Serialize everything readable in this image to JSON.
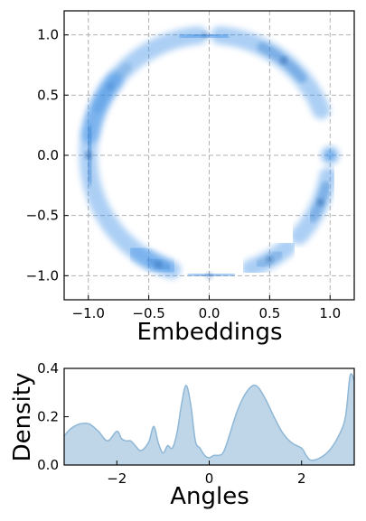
{
  "chart_data": [
    {
      "type": "kde2d",
      "xlabel": "Embeddings",
      "ylabel": "",
      "xlim": [
        -1.2,
        1.2
      ],
      "ylim": [
        -1.2,
        1.2
      ],
      "xticks": [
        -1.0,
        -0.5,
        0.0,
        0.5,
        1.0
      ],
      "yticks": [
        -1.0,
        -0.5,
        0.0,
        0.5,
        1.0
      ],
      "xtick_labels": [
        "−1.0",
        "−0.5",
        "0.0",
        "0.5",
        "1.0"
      ],
      "ytick_labels": [
        "−1.0",
        "−0.5",
        "0.0",
        "0.5",
        "1.0"
      ],
      "grid": true,
      "grid_style": "dashed",
      "color": "#3a8ee6",
      "clusters_deg": [
        {
          "start": 95,
          "end": 170,
          "peak": 145,
          "strength": 0.55
        },
        {
          "start": 142,
          "end": 252,
          "peak": 180,
          "strength": 0.95
        },
        {
          "start": 233,
          "end": 250,
          "peak": 245,
          "strength": 0.7
        },
        {
          "start": 263,
          "end": 279,
          "peak": 270,
          "strength": 0.6
        },
        {
          "start": 290,
          "end": 310,
          "peak": 300,
          "strength": 0.7
        },
        {
          "start": 318,
          "end": 350,
          "peak": 337,
          "strength": 0.9
        },
        {
          "start": 0,
          "end": 0,
          "peak": 0,
          "strength": 0.6
        },
        {
          "start": 22,
          "end": 85,
          "peak": 52,
          "strength": 0.95
        },
        {
          "start": 84,
          "end": 101,
          "peak": 92,
          "strength": 0.6
        }
      ]
    },
    {
      "type": "area",
      "xlabel": "Angles",
      "ylabel": "Density",
      "xlim": [
        -3.14,
        3.14
      ],
      "ylim": [
        0,
        0.4
      ],
      "xticks": [
        -2,
        0,
        2
      ],
      "yticks": [
        0.0,
        0.2,
        0.4
      ],
      "xtick_labels": [
        "−2",
        "0",
        "2"
      ],
      "ytick_labels": [
        "0.0",
        "0.2",
        "0.4"
      ],
      "fill_color": "#a8c8e0",
      "line_color": "#8fb7d6",
      "x": [
        -3.14,
        -3.0,
        -2.8,
        -2.6,
        -2.4,
        -2.2,
        -2.0,
        -1.9,
        -1.8,
        -1.7,
        -1.6,
        -1.5,
        -1.4,
        -1.3,
        -1.2,
        -1.1,
        -1.0,
        -0.9,
        -0.8,
        -0.7,
        -0.6,
        -0.5,
        -0.4,
        -0.3,
        -0.2,
        -0.1,
        0.0,
        0.1,
        0.2,
        0.3,
        0.4,
        0.6,
        0.8,
        1.0,
        1.2,
        1.4,
        1.6,
        1.8,
        2.0,
        2.1,
        2.2,
        2.4,
        2.6,
        2.8,
        2.95,
        3.05,
        3.14
      ],
      "y": [
        0.12,
        0.15,
        0.17,
        0.17,
        0.14,
        0.1,
        0.14,
        0.11,
        0.1,
        0.1,
        0.08,
        0.06,
        0.07,
        0.1,
        0.16,
        0.09,
        0.05,
        0.08,
        0.07,
        0.13,
        0.25,
        0.33,
        0.25,
        0.1,
        0.07,
        0.04,
        0.03,
        0.04,
        0.04,
        0.05,
        0.1,
        0.22,
        0.3,
        0.33,
        0.28,
        0.2,
        0.13,
        0.09,
        0.07,
        0.04,
        0.02,
        0.03,
        0.06,
        0.12,
        0.2,
        0.37,
        0.35
      ]
    }
  ]
}
